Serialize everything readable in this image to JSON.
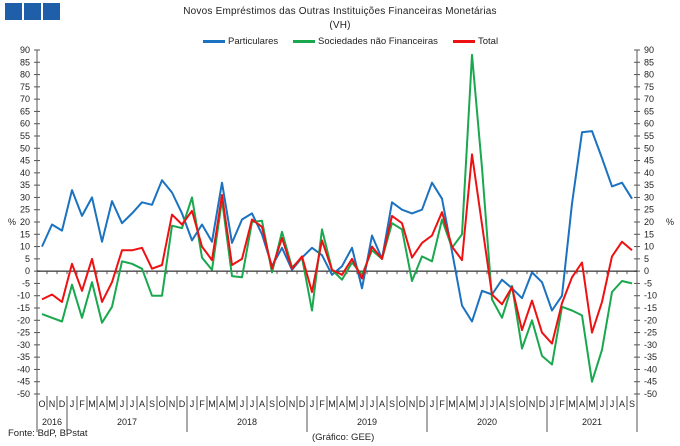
{
  "title": "Novos Empréstimos das Outras Instituições Financeiras Monetárias",
  "subtitle": "(VH)",
  "source": "Fonte: BdP, BPstat",
  "credit": "(Gráfico: GEE)",
  "chart_data": {
    "type": "line",
    "title": "Novos Empréstimos das Outras Instituições Financeiras Monetárias",
    "subtitle": "(VH)",
    "ylabel": "%",
    "ylim": [
      -50,
      90
    ],
    "ytick_step": 5,
    "grid": false,
    "legend_position": "top-center",
    "months": [
      "O",
      "N",
      "D",
      "J",
      "F",
      "M",
      "A",
      "M",
      "J",
      "J",
      "A",
      "S",
      "O",
      "N",
      "D",
      "J",
      "F",
      "M",
      "A",
      "M",
      "J",
      "J",
      "A",
      "S",
      "O",
      "N",
      "D",
      "J",
      "F",
      "M",
      "A",
      "M",
      "J",
      "J",
      "A",
      "S",
      "O",
      "N",
      "D",
      "J",
      "F",
      "M",
      "A",
      "M",
      "J",
      "J",
      "A",
      "S",
      "O",
      "N",
      "D",
      "J",
      "F",
      "M",
      "A",
      "M",
      "J",
      "J",
      "A",
      "S"
    ],
    "years": [
      {
        "label": "2016",
        "months": 3
      },
      {
        "label": "2017",
        "months": 12
      },
      {
        "label": "2018",
        "months": 12
      },
      {
        "label": "2019",
        "months": 12
      },
      {
        "label": "2020",
        "months": 12
      },
      {
        "label": "2021",
        "months": 9
      }
    ],
    "series": [
      {
        "name": "Particulares",
        "color": "#1a72c0",
        "values": [
          10,
          19,
          16.5,
          33,
          22.5,
          30,
          12,
          28.5,
          19.5,
          23.5,
          28,
          27,
          37,
          32,
          23.5,
          12.5,
          19,
          12,
          36,
          11.5,
          21,
          23.5,
          15,
          2,
          9.5,
          0.5,
          5.5,
          9.5,
          6.5,
          -1.5,
          2,
          9.5,
          -7,
          14.5,
          5,
          28,
          25,
          23.5,
          25,
          36,
          29.5,
          8,
          -14,
          -20.5,
          -8,
          -9.5,
          -3.5,
          -7,
          -11,
          -0.5,
          -4.5,
          -16,
          -10,
          27.5,
          56.5,
          57,
          46,
          34.5,
          36,
          29.5
        ]
      },
      {
        "name": "Sociedades não Financeiras",
        "color": "#1aa84f",
        "values": [
          -17.5,
          -19,
          -20.5,
          -5.5,
          -19,
          -4.5,
          -21,
          -14.5,
          4,
          3,
          1,
          -10,
          -10,
          18.5,
          17.5,
          30,
          5.5,
          0.5,
          29,
          -2,
          -2.5,
          20,
          20.5,
          -0.5,
          16,
          1.5,
          5.5,
          -16,
          17,
          0.5,
          -3.5,
          3.5,
          -1.5,
          8.5,
          5,
          19.5,
          17,
          -4,
          6,
          4,
          21,
          9.5,
          15,
          88,
          42,
          -11.5,
          -19,
          -6,
          -31.5,
          -20,
          -34.5,
          -38,
          -14.5,
          -16,
          -18,
          -45,
          -32,
          -8.5,
          -4,
          -5
        ]
      },
      {
        "name": "Total",
        "color": "#ee1111",
        "values": [
          -11.5,
          -9.5,
          -12.5,
          3,
          -8,
          5,
          -12.5,
          -4.5,
          8.5,
          8.5,
          9.5,
          1,
          2.5,
          23,
          19,
          24.5,
          10,
          4.5,
          31,
          2.5,
          5,
          21,
          18,
          1,
          13.5,
          1,
          6,
          -8.5,
          12.5,
          0.5,
          -1.5,
          5,
          -3,
          10,
          5,
          22.5,
          19.5,
          5.5,
          11.5,
          14.5,
          24,
          10,
          4.5,
          47.5,
          19,
          -9.5,
          -13.5,
          -6.5,
          -24,
          -12,
          -25,
          -29.5,
          -13,
          -2.5,
          3.5,
          -25,
          -12.5,
          6,
          12,
          8.5
        ]
      }
    ]
  }
}
